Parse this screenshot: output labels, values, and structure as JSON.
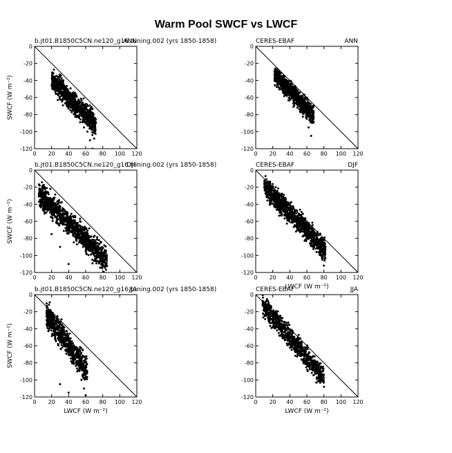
{
  "figure_title": "Warm Pool SWCF vs LWCF",
  "chart_data": [
    {
      "type": "scatter",
      "left_label": "b.jt01.B1850C5CN.ne120_g16.tuning.002 (yrs 1850-1858)",
      "right_label": "ANN",
      "xlabel": "",
      "ylabel": "SWCF (W m⁻²)",
      "xlim": [
        0,
        120
      ],
      "ylim": [
        -120,
        0
      ],
      "xticks": [
        "0",
        "20",
        "40",
        "60",
        "80",
        "100",
        "120"
      ],
      "yticks": [
        "0",
        "-20",
        "-40",
        "-60",
        "-80",
        "-100",
        "-120"
      ],
      "reference_line": "y = -x",
      "cloud": {
        "count": 900,
        "xmin": 20,
        "xmax": 72,
        "ycenter_intercept": -20,
        "slope": -1.0,
        "spread": 12
      },
      "points": [
        [
          20,
          -45
        ],
        [
          25,
          -50
        ],
        [
          28,
          -44
        ],
        [
          30,
          -36
        ],
        [
          32,
          -40
        ],
        [
          35,
          -48
        ],
        [
          38,
          -55
        ],
        [
          40,
          -60
        ],
        [
          45,
          -65
        ],
        [
          50,
          -70
        ],
        [
          55,
          -80
        ],
        [
          60,
          -90
        ],
        [
          62,
          -100
        ],
        [
          65,
          -110
        ],
        [
          70,
          -108
        ],
        [
          68,
          -120
        ],
        [
          58,
          -95
        ],
        [
          48,
          -80
        ],
        [
          42,
          -75
        ],
        [
          36,
          -62
        ]
      ]
    },
    {
      "type": "scatter",
      "left_label": "CERES-EBAF",
      "right_label": "ANN",
      "xlabel": "",
      "ylabel": "",
      "xlim": [
        0,
        120
      ],
      "ylim": [
        -120,
        0
      ],
      "xticks": [
        "0",
        "20",
        "40",
        "60",
        "80",
        "100",
        "120"
      ],
      "yticks": [
        "0",
        "-20",
        "-40",
        "-60",
        "-80",
        "-100",
        "-120"
      ],
      "reference_line": "y = -x",
      "cloud": {
        "count": 900,
        "xmin": 22,
        "xmax": 68,
        "ycenter_intercept": -10,
        "slope": -1.05,
        "spread": 10
      },
      "points": [
        [
          22,
          -33
        ],
        [
          25,
          -34
        ],
        [
          28,
          -36
        ],
        [
          30,
          -40
        ],
        [
          35,
          -45
        ],
        [
          40,
          -55
        ],
        [
          45,
          -62
        ],
        [
          50,
          -70
        ],
        [
          55,
          -78
        ],
        [
          60,
          -85
        ],
        [
          62,
          -95
        ],
        [
          65,
          -105
        ],
        [
          50,
          -60
        ],
        [
          42,
          -50
        ],
        [
          38,
          -48
        ]
      ]
    },
    {
      "type": "scatter",
      "left_label": "b.jt01.B1850C5CN.ne120_g16.tuning.002 (yrs 1850-1858)",
      "right_label": "DJF",
      "xlabel": "",
      "ylabel": "SWCF (W m⁻²)",
      "xlim": [
        0,
        120
      ],
      "ylim": [
        -120,
        0
      ],
      "xticks": [
        "0",
        "20",
        "40",
        "60",
        "80",
        "100",
        "120"
      ],
      "yticks": [
        "0",
        "-20",
        "-40",
        "-60",
        "-80",
        "-100",
        "-120"
      ],
      "reference_line": "y = -x",
      "cloud": {
        "count": 1100,
        "xmin": 5,
        "xmax": 85,
        "ycenter_intercept": -22,
        "slope": -1.0,
        "spread": 14
      },
      "points": [
        [
          5,
          -28
        ],
        [
          8,
          -26
        ],
        [
          10,
          -30
        ],
        [
          15,
          -35
        ],
        [
          20,
          -40
        ],
        [
          25,
          -45
        ],
        [
          30,
          -55
        ],
        [
          40,
          -62
        ],
        [
          50,
          -72
        ],
        [
          60,
          -82
        ],
        [
          70,
          -92
        ],
        [
          75,
          -100
        ],
        [
          80,
          -108
        ],
        [
          85,
          -112
        ],
        [
          30,
          -90
        ],
        [
          20,
          -75
        ],
        [
          40,
          -110
        ]
      ]
    },
    {
      "type": "scatter",
      "left_label": "CERES-EBAF",
      "right_label": "DJF",
      "xlabel": "LWCF (W m⁻²)",
      "ylabel": "",
      "xlim": [
        0,
        120
      ],
      "ylim": [
        -120,
        0
      ],
      "xticks": [
        "0",
        "20",
        "40",
        "60",
        "80",
        "100",
        "120"
      ],
      "yticks": [
        "0",
        "-20",
        "-40",
        "-60",
        "-80",
        "-100",
        "-120"
      ],
      "reference_line": "y = -x",
      "cloud": {
        "count": 1100,
        "xmin": 10,
        "xmax": 82,
        "ycenter_intercept": -8,
        "slope": -1.05,
        "spread": 12
      },
      "points": [
        [
          10,
          -20
        ],
        [
          12,
          -22
        ],
        [
          15,
          -25
        ],
        [
          20,
          -30
        ],
        [
          30,
          -42
        ],
        [
          40,
          -52
        ],
        [
          50,
          -62
        ],
        [
          60,
          -72
        ],
        [
          70,
          -85
        ],
        [
          75,
          -95
        ],
        [
          78,
          -105
        ],
        [
          80,
          -112
        ]
      ]
    },
    {
      "type": "scatter",
      "left_label": "b.jt01.B1850C5CN.ne120_g16.tuning.002 (yrs 1850-1858)",
      "right_label": "JJA",
      "xlabel": "LWCF (W m⁻²)",
      "ylabel": "SWCF (W m⁻²)",
      "xlim": [
        0,
        120
      ],
      "ylim": [
        -120,
        0
      ],
      "xticks": [
        "0",
        "20",
        "40",
        "60",
        "80",
        "100",
        "120"
      ],
      "yticks": [
        "0",
        "-20",
        "-40",
        "-60",
        "-80",
        "-100",
        "-120"
      ],
      "reference_line": "y = -x",
      "cloud": {
        "count": 800,
        "xmin": 14,
        "xmax": 62,
        "ycenter_intercept": -5,
        "slope": -1.35,
        "spread": 14
      },
      "points": [
        [
          15,
          -20
        ],
        [
          18,
          -25
        ],
        [
          20,
          -30
        ],
        [
          25,
          -40
        ],
        [
          30,
          -50
        ],
        [
          35,
          -60
        ],
        [
          40,
          -70
        ],
        [
          45,
          -80
        ],
        [
          50,
          -90
        ],
        [
          55,
          -100
        ],
        [
          58,
          -110
        ],
        [
          60,
          -118
        ],
        [
          40,
          -115
        ],
        [
          30,
          -105
        ]
      ]
    },
    {
      "type": "scatter",
      "left_label": "CERES-EBAF",
      "right_label": "JJA",
      "xlabel": "LWCF (W m⁻²)",
      "ylabel": "",
      "xlim": [
        0,
        120
      ],
      "ylim": [
        -120,
        0
      ],
      "xticks": [
        "0",
        "20",
        "40",
        "60",
        "80",
        "100",
        "120"
      ],
      "yticks": [
        "0",
        "-20",
        "-40",
        "-60",
        "-80",
        "-100",
        "-120"
      ],
      "reference_line": "y = -x",
      "cloud": {
        "count": 800,
        "xmin": 8,
        "xmax": 80,
        "ycenter_intercept": -2,
        "slope": -1.2,
        "spread": 12
      },
      "points": [
        [
          8,
          -12
        ],
        [
          10,
          -15
        ],
        [
          15,
          -22
        ],
        [
          20,
          -30
        ],
        [
          30,
          -42
        ],
        [
          40,
          -55
        ],
        [
          50,
          -68
        ],
        [
          60,
          -80
        ],
        [
          70,
          -92
        ],
        [
          75,
          -100
        ],
        [
          80,
          -108
        ]
      ]
    }
  ]
}
